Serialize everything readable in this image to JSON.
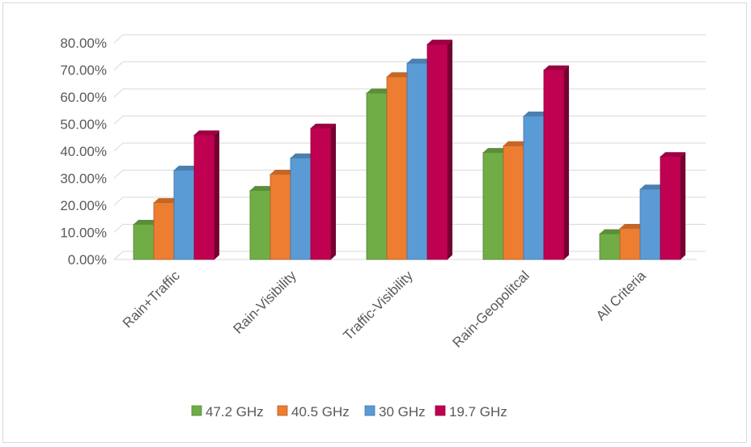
{
  "chart_data": {
    "type": "bar",
    "categories": [
      "Rain+Traffic",
      "Rain-Visibility",
      "Traffic-Visibility",
      "Rain-Geopolitcal",
      "All Criteria"
    ],
    "series": [
      {
        "name": "47.2 GHz",
        "color": "#70ad47",
        "values": [
          0.13,
          0.255,
          0.615,
          0.395,
          0.095
        ]
      },
      {
        "name": "40.5 GHz",
        "color": "#ed7d31",
        "values": [
          0.21,
          0.315,
          0.675,
          0.42,
          0.115
        ]
      },
      {
        "name": "30 GHz",
        "color": "#5b9bd5",
        "values": [
          0.33,
          0.375,
          0.725,
          0.53,
          0.26
        ]
      },
      {
        "name": "19.7 GHz",
        "color": "#c00050",
        "values": [
          0.46,
          0.485,
          0.795,
          0.7,
          0.38
        ]
      }
    ],
    "yticks": [
      "0.00%",
      "10.00%",
      "20.00%",
      "30.00%",
      "40.00%",
      "50.00%",
      "60.00%",
      "70.00%",
      "80.00%"
    ],
    "ylim": [
      0,
      0.8
    ],
    "title": "",
    "xlabel": "",
    "ylabel": "",
    "grid": true,
    "legend_position": "bottom",
    "style": "3d-clustered-column"
  }
}
